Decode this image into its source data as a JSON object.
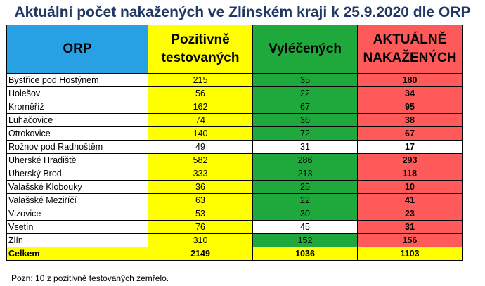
{
  "title": "Aktuální počet nakažených ve Zlínském kraji k 25.9.2020 dle ORP",
  "header": {
    "orp": "ORP",
    "pozitivne_line1": "Pozitivně",
    "pozitivne_line2": "testovaných",
    "vyleceni": "Vyléčených",
    "aktualne_line1": "AKTUÁLNĚ",
    "aktualne_line2": "NAKAŽENÝCH"
  },
  "colors": {
    "header_orp": "#27a0e4",
    "positive": "#ffff00",
    "recovered": "#1fa93c",
    "active": "#ff5a5a",
    "title": "#1f3864"
  },
  "rows": [
    {
      "orp": "Bystřice pod Hostýnem",
      "pozitivne": "215",
      "vyleceni": "35",
      "aktualne": "180",
      "style": [
        "y",
        "g",
        "r"
      ]
    },
    {
      "orp": "Holešov",
      "pozitivne": "56",
      "vyleceni": "22",
      "aktualne": "34",
      "style": [
        "y",
        "g",
        "r"
      ]
    },
    {
      "orp": "Kroměříž",
      "pozitivne": "162",
      "vyleceni": "67",
      "aktualne": "95",
      "style": [
        "y",
        "g",
        "r"
      ]
    },
    {
      "orp": "Luhačovice",
      "pozitivne": "74",
      "vyleceni": "36",
      "aktualne": "38",
      "style": [
        "y",
        "g",
        "r"
      ]
    },
    {
      "orp": "Otrokovice",
      "pozitivne": "140",
      "vyleceni": "72",
      "aktualne": "67",
      "style": [
        "y",
        "g",
        "r"
      ]
    },
    {
      "orp": "Rožnov pod Radhoštěm",
      "pozitivne": "49",
      "vyleceni": "31",
      "aktualne": "17",
      "style": [
        "w",
        "w",
        "w"
      ]
    },
    {
      "orp": "Uherské Hradiště",
      "pozitivne": "582",
      "vyleceni": "286",
      "aktualne": "293",
      "style": [
        "y",
        "g",
        "r"
      ]
    },
    {
      "orp": "Uherský Brod",
      "pozitivne": "333",
      "vyleceni": "213",
      "aktualne": "118",
      "style": [
        "y",
        "g",
        "r"
      ]
    },
    {
      "orp": "Valašské Klobouky",
      "pozitivne": "36",
      "vyleceni": "25",
      "aktualne": "10",
      "style": [
        "y",
        "g",
        "r"
      ]
    },
    {
      "orp": "Valašské Meziříčí",
      "pozitivne": "63",
      "vyleceni": "22",
      "aktualne": "41",
      "style": [
        "y",
        "g",
        "r"
      ]
    },
    {
      "orp": "Vizovice",
      "pozitivne": "53",
      "vyleceni": "30",
      "aktualne": "23",
      "style": [
        "y",
        "g",
        "r"
      ]
    },
    {
      "orp": "Vsetín",
      "pozitivne": "76",
      "vyleceni": "45",
      "aktualne": "31",
      "style": [
        "y",
        "w",
        "r"
      ]
    },
    {
      "orp": "Zlín",
      "pozitivne": "310",
      "vyleceni": "152",
      "aktualne": "156",
      "style": [
        "y",
        "g",
        "r"
      ]
    }
  ],
  "total": {
    "orp": "Celkem",
    "pozitivne": "2149",
    "vyleceni": "1036",
    "aktualne": "1103"
  },
  "note": "Pozn: 10 z pozitivně testovaných zemřelo."
}
